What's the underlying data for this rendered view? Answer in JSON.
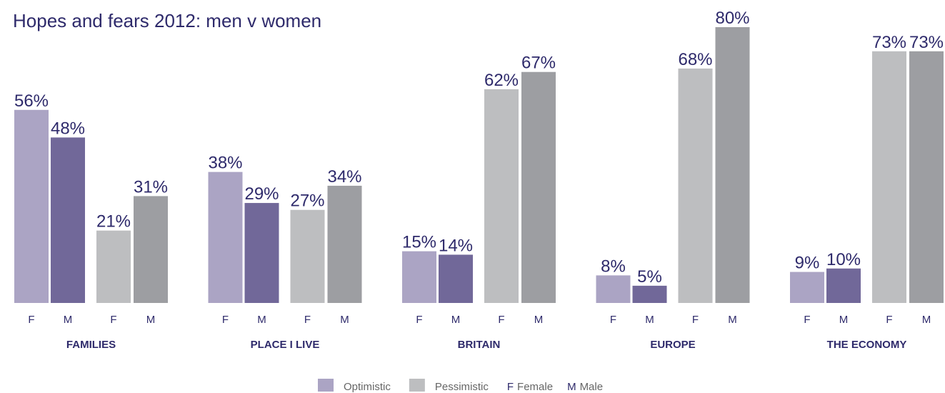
{
  "chart_data": {
    "type": "bar",
    "title": "Hopes and fears 2012: men v women",
    "categories": [
      "FAMILIES",
      "PLACE I LIVE",
      "BRITAIN",
      "EUROPE",
      "THE ECONOMY"
    ],
    "series": [
      {
        "name": "Optimistic",
        "gender": "F",
        "color": "#aba4c4",
        "values": [
          56,
          38,
          15,
          8,
          9
        ],
        "value_labels": [
          "56%",
          "38%",
          "15%",
          "8%",
          "9%"
        ]
      },
      {
        "name": "Optimistic",
        "gender": "M",
        "color": "#716899",
        "values": [
          48,
          29,
          14,
          5,
          10
        ],
        "value_labels": [
          "48%",
          "29%",
          "14%",
          "5%",
          "10%"
        ]
      },
      {
        "name": "Pessimistic",
        "gender": "F",
        "color": "#bdbec0",
        "values": [
          21,
          27,
          62,
          68,
          73
        ],
        "value_labels": [
          "21%",
          "27%",
          "62%",
          "68%",
          "73%"
        ]
      },
      {
        "name": "Pessimistic",
        "gender": "M",
        "color": "#9d9ea2",
        "values": [
          31,
          34,
          67,
          80,
          73
        ],
        "value_labels": [
          "31%",
          "34%",
          "67%",
          "80%",
          "73%"
        ]
      }
    ],
    "genders": [
      {
        "code": "F",
        "name": "Female"
      },
      {
        "code": "M",
        "name": "Male"
      }
    ],
    "ylim": [
      0,
      80
    ]
  }
}
